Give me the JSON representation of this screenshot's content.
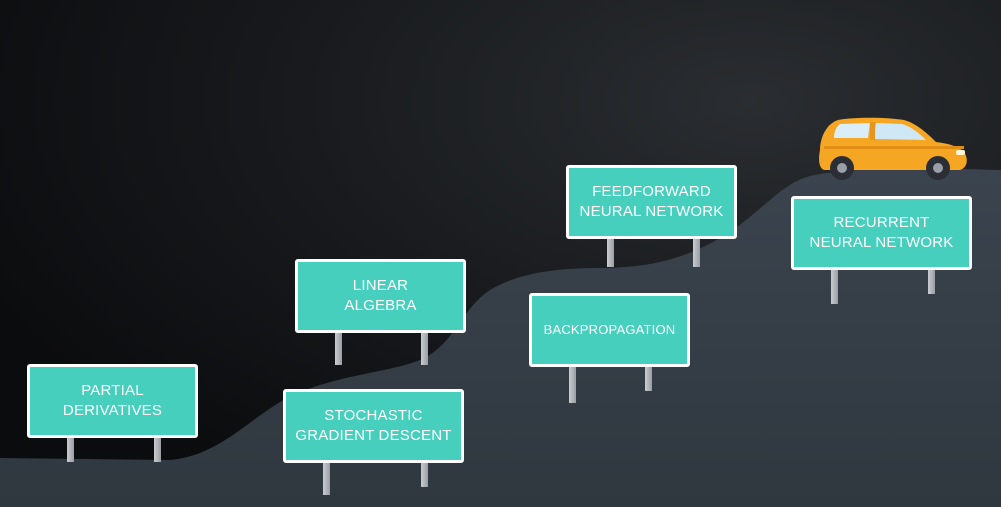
{
  "colors": {
    "sky_dark": "#0b0c0e",
    "sky_light": "#2a2d31",
    "hill": "#37404a",
    "sign_fill": "#47cfbe",
    "sign_border": "#ffffff",
    "car_body": "#f5a623"
  },
  "signs": {
    "partial_derivatives": {
      "line1": "PARTIAL",
      "line2": "DERIVATIVES"
    },
    "linear_algebra": {
      "line1": "LINEAR",
      "line2": "ALGEBRA"
    },
    "stochastic_gradient_descent": {
      "line1": "STOCHASTIC",
      "line2": "GRADIENT DESCENT"
    },
    "backpropagation": {
      "line1": "BACKPROPAGATION"
    },
    "feedforward_neural_network": {
      "line1": "FEEDFORWARD",
      "line2": "NEURAL NETWORK"
    },
    "recurrent_neural_network": {
      "line1": "RECURRENT",
      "line2": "NEURAL NETWORK"
    }
  },
  "car": {
    "icon": "car-icon"
  }
}
